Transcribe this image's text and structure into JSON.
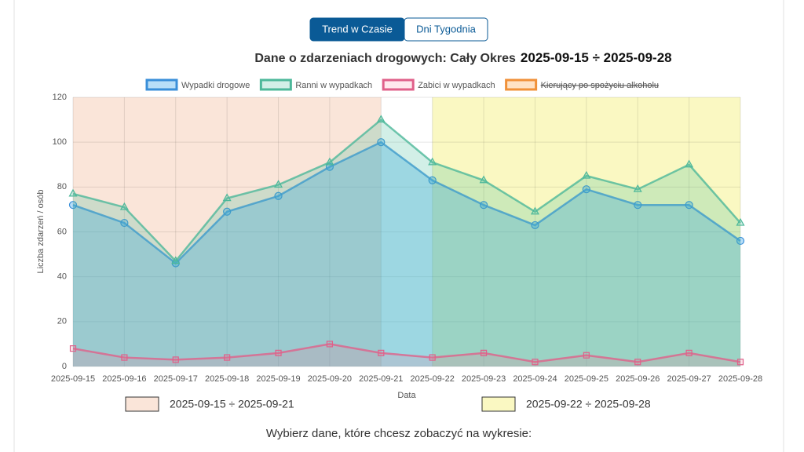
{
  "tabs": [
    {
      "label": "Trend w Czasie",
      "active": true
    },
    {
      "label": "Dni Tygodnia",
      "active": false
    }
  ],
  "chart_data": {
    "type": "line",
    "title": "Dane o zdarzeniach drogowych: Cały Okres",
    "period": "2025-09-15  ÷  2025-09-28",
    "x_label": "Data",
    "y_label": "Liczba zdarzeń / osób",
    "categories": [
      "2025-09-15",
      "2025-09-16",
      "2025-09-17",
      "2025-09-18",
      "2025-09-19",
      "2025-09-20",
      "2025-09-21",
      "2025-09-22",
      "2025-09-23",
      "2025-09-24",
      "2025-09-25",
      "2025-09-26",
      "2025-09-27",
      "2025-09-28"
    ],
    "series": [
      {
        "name": "Wypadki drogowe",
        "color": "#3a8fd9",
        "fill": "rgba(54,162,235,0.35)",
        "point_style": "circle",
        "values": [
          72,
          64,
          46,
          69,
          76,
          89,
          100,
          83,
          72,
          63,
          79,
          72,
          72,
          56
        ]
      },
      {
        "name": "Ranni w wypadkach",
        "color": "#4db89a",
        "fill": "rgba(75,192,160,0.25)",
        "point_style": "triangle",
        "values": [
          77,
          71,
          47,
          75,
          81,
          91,
          110,
          91,
          83,
          69,
          85,
          79,
          90,
          64
        ]
      },
      {
        "name": "Zabici w wypadkach",
        "color": "#e0608a",
        "fill": "rgba(255,99,132,0.15)",
        "point_style": "rect",
        "values": [
          8,
          4,
          3,
          4,
          6,
          10,
          6,
          4,
          6,
          2,
          5,
          2,
          6,
          2
        ]
      },
      {
        "name": "Kierujący po spożyciu alkoholu",
        "color": "#f0913a",
        "fill": "rgba(255,159,64,0.3)",
        "point_style": "circle",
        "hidden": true,
        "values": [
          null,
          null,
          null,
          null,
          null,
          null,
          null,
          null,
          null,
          null,
          null,
          null,
          null,
          null
        ]
      }
    ],
    "regions": [
      {
        "label": "2025-09-15  ÷  2025-09-21",
        "from": "2025-09-15",
        "to": "2025-09-21",
        "color": "rgba(240,170,130,0.3)"
      },
      {
        "label": "2025-09-22  ÷  2025-09-28",
        "from": "2025-09-22",
        "to": "2025-09-28",
        "color": "rgba(245,240,120,0.45)"
      }
    ],
    "ylim": [
      0,
      120
    ],
    "yticks": [
      0,
      20,
      40,
      60,
      80,
      100,
      120
    ],
    "grid": true
  },
  "prompt": "Wybierz dane, które chcesz zobaczyć na wykresie:"
}
